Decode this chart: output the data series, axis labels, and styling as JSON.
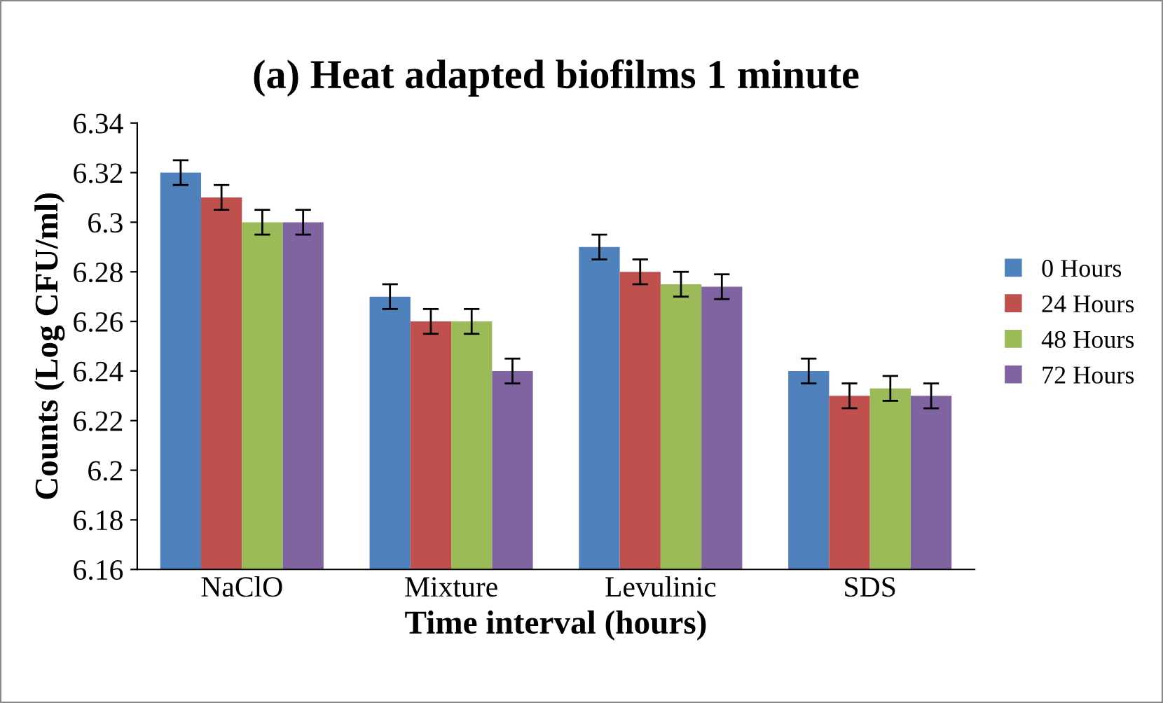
{
  "chart_data": {
    "type": "bar",
    "title": "(a) Heat adapted biofilms 1 minute",
    "xlabel": "Time interval (hours)",
    "ylabel": "Counts (Log CFU/ml)",
    "categories": [
      "NaClO",
      "Mixture",
      "Levulinic",
      "SDS"
    ],
    "series": [
      {
        "name": "0 Hours",
        "color": "#4f81bd",
        "values": [
          6.32,
          6.27,
          6.29,
          6.24
        ],
        "errors": [
          0.005,
          0.005,
          0.005,
          0.005
        ]
      },
      {
        "name": "24 Hours",
        "color": "#c0504d",
        "values": [
          6.31,
          6.26,
          6.28,
          6.23
        ],
        "errors": [
          0.005,
          0.005,
          0.005,
          0.005
        ]
      },
      {
        "name": "48 Hours",
        "color": "#9bbb59",
        "values": [
          6.3,
          6.26,
          6.275,
          6.233
        ],
        "errors": [
          0.005,
          0.005,
          0.005,
          0.005
        ]
      },
      {
        "name": "72 Hours",
        "color": "#8064a2",
        "values": [
          6.3,
          6.24,
          6.274,
          6.23
        ],
        "errors": [
          0.005,
          0.005,
          0.005,
          0.005
        ]
      }
    ],
    "ylim": [
      6.16,
      6.34
    ],
    "yticks": [
      {
        "value": 6.16,
        "label": "6.16"
      },
      {
        "value": 6.18,
        "label": "6.18"
      },
      {
        "value": 6.2,
        "label": "6.2"
      },
      {
        "value": 6.22,
        "label": "6.22"
      },
      {
        "value": 6.24,
        "label": "6.24"
      },
      {
        "value": 6.26,
        "label": "6.26"
      },
      {
        "value": 6.28,
        "label": "6.28"
      },
      {
        "value": 6.3,
        "label": "6.3"
      },
      {
        "value": 6.32,
        "label": "6.32"
      },
      {
        "value": 6.34,
        "label": "6.34"
      }
    ],
    "grid": false,
    "legend": "right"
  }
}
